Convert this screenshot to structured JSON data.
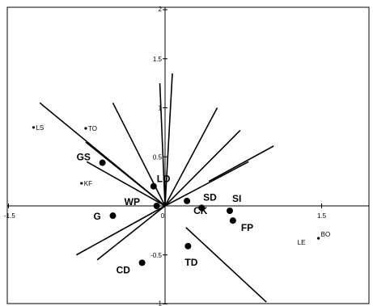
{
  "chart_data": {
    "type": "scatter",
    "xlim": [
      -1.5,
      1.97
    ],
    "ylim": [
      -1.0,
      2.0
    ],
    "grid": false,
    "x_ticks": [
      {
        "value": -1.5,
        "label": "-1.5"
      },
      {
        "value": 0,
        "label": "0"
      },
      {
        "value": 1.5,
        "label": "1.5"
      }
    ],
    "y_ticks": [
      {
        "value": 2,
        "label": "2"
      },
      {
        "value": 1.5,
        "label": "1.5"
      },
      {
        "value": 1,
        "label": "1"
      },
      {
        "value": 0.5,
        "label": "0.5"
      },
      {
        "value": -0.5,
        "label": "-0.5"
      },
      {
        "value": -1,
        "label": "-1"
      }
    ],
    "points": [
      {
        "label": "GS",
        "x": -0.6,
        "y": 0.44,
        "marker": "large",
        "emphasis": "bold"
      },
      {
        "label": "LO",
        "x": -0.11,
        "y": 0.2,
        "marker": "large",
        "emphasis": "bold"
      },
      {
        "label": "WP",
        "x": -0.08,
        "y": 0.0,
        "marker": "large",
        "emphasis": "bold"
      },
      {
        "label": "G",
        "x": -0.5,
        "y": -0.1,
        "marker": "large",
        "emphasis": "bold"
      },
      {
        "label": "CK",
        "x": 0.21,
        "y": 0.05,
        "marker": "large",
        "emphasis": "bold"
      },
      {
        "label": "SD",
        "x": 0.35,
        "y": -0.02,
        "marker": "large",
        "emphasis": "bold"
      },
      {
        "label": "SI",
        "x": 0.62,
        "y": -0.05,
        "marker": "large",
        "emphasis": "bold"
      },
      {
        "label": "FP",
        "x": 0.65,
        "y": -0.15,
        "marker": "large",
        "emphasis": "bold"
      },
      {
        "label": "TD",
        "x": 0.22,
        "y": -0.41,
        "marker": "large",
        "emphasis": "bold"
      },
      {
        "label": "CD",
        "x": -0.22,
        "y": -0.58,
        "marker": "large",
        "emphasis": "bold"
      },
      {
        "label": "LS",
        "x": -1.26,
        "y": 0.8,
        "marker": "small",
        "emphasis": "normal"
      },
      {
        "label": "TO",
        "x": -0.76,
        "y": 0.79,
        "marker": "small",
        "emphasis": "normal"
      },
      {
        "label": "KF",
        "x": -0.8,
        "y": 0.23,
        "marker": "small",
        "emphasis": "normal"
      },
      {
        "label": "BO",
        "x": 1.47,
        "y": -0.33,
        "marker": "small",
        "emphasis": "normal"
      },
      {
        "label": "LE",
        "x": 1.47,
        "y": -0.33,
        "marker": "none",
        "emphasis": "normal"
      }
    ],
    "vectors": [
      {
        "from": [
          0,
          0
        ],
        "to": [
          -1.2,
          1.05
        ]
      },
      {
        "from": [
          0,
          0
        ],
        "to": [
          -0.76,
          0.65
        ]
      },
      {
        "from": [
          0,
          0
        ],
        "to": [
          -0.5,
          1.05
        ]
      },
      {
        "from": [
          0,
          0
        ],
        "to": [
          -0.75,
          0.45
        ]
      },
      {
        "from": [
          0,
          0
        ],
        "to": [
          -0.05,
          1.25
        ]
      },
      {
        "from": [
          0,
          0
        ],
        "to": [
          0.07,
          1.35
        ]
      },
      {
        "from": [
          0,
          0
        ],
        "to": [
          0.5,
          1.0
        ]
      },
      {
        "from": [
          0,
          0
        ],
        "to": [
          0.72,
          0.77
        ]
      },
      {
        "from": [
          0,
          0
        ],
        "to": [
          0.8,
          0.45
        ]
      },
      {
        "from": [
          0,
          0
        ],
        "to": [
          -0.85,
          -0.5
        ]
      },
      {
        "from": [
          0,
          0
        ],
        "to": [
          -0.65,
          -0.55
        ]
      },
      {
        "from": [
          0.42,
          0.25
        ],
        "to": [
          1.04,
          0.61
        ]
      },
      {
        "from": [
          0.2,
          -0.22
        ],
        "to": [
          0.97,
          -0.98
        ]
      }
    ]
  }
}
